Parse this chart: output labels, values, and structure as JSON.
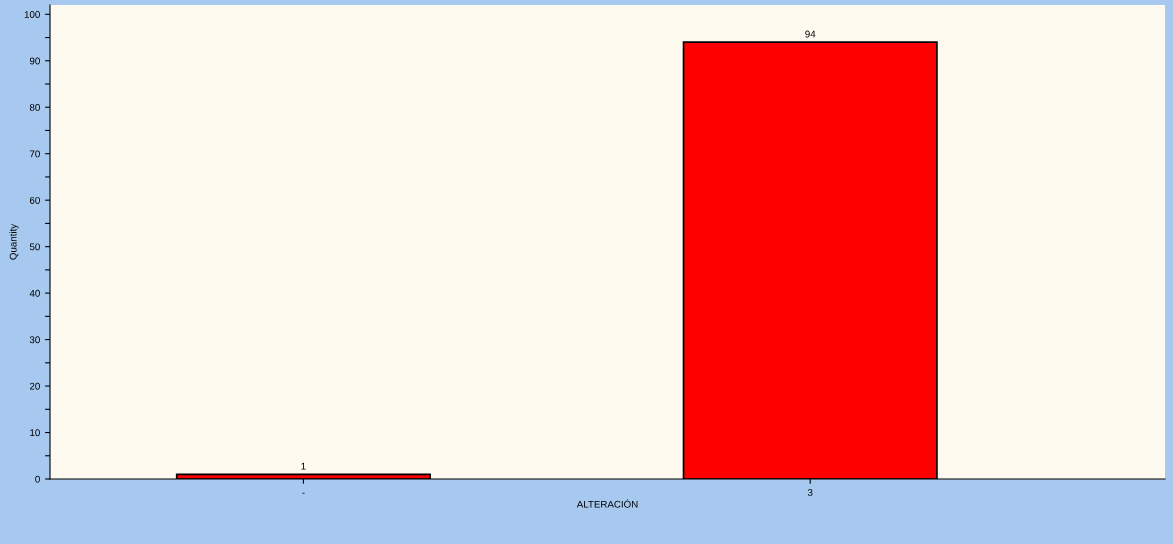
{
  "chart_data": {
    "type": "bar",
    "xlabel": "ALTERACIÓN",
    "ylabel": "Quantity",
    "categories": [
      "-",
      "3"
    ],
    "values": [
      1,
      94
    ],
    "color": "#ff0000",
    "data_labels": true,
    "ylim": [
      0,
      102
    ],
    "yticks": [
      0,
      {
        "value": 5,
        "label": null
      },
      10,
      {
        "value": 15,
        "label": null
      },
      20,
      {
        "value": 25,
        "label": null
      },
      30,
      {
        "value": 35,
        "label": null
      },
      40,
      {
        "value": 45,
        "label": null
      },
      50,
      {
        "value": 55,
        "label": null
      },
      60,
      {
        "value": 65,
        "label": null
      },
      70,
      {
        "value": 75,
        "label": null
      },
      80,
      {
        "value": 85,
        "label": null
      },
      90,
      {
        "value": 95,
        "label": null
      },
      100
    ],
    "grid": false,
    "legend": false
  }
}
